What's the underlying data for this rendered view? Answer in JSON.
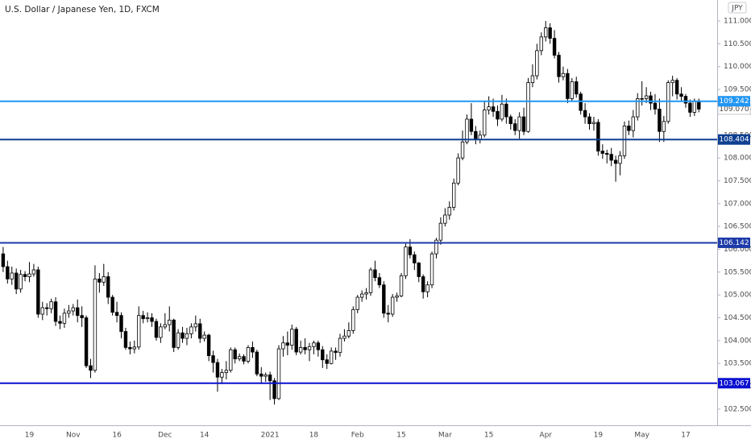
{
  "chart_data": {
    "type": "candlestick",
    "title": "U.S. Dollar / Japanese Yen, 1D, FXCM",
    "currency": "JPY",
    "categories": [
      null,
      null,
      null,
      null,
      null,
      null,
      "19",
      null,
      null,
      null,
      null,
      null,
      null,
      null,
      null,
      null,
      "Nov",
      null,
      null,
      null,
      null,
      null,
      null,
      null,
      null,
      null,
      "16",
      null,
      null,
      null,
      null,
      null,
      null,
      null,
      null,
      null,
      null,
      "Dec",
      null,
      null,
      null,
      null,
      null,
      null,
      null,
      null,
      "14",
      null,
      null,
      null,
      null,
      null,
      null,
      null,
      null,
      null,
      null,
      null,
      null,
      null,
      null,
      "2021",
      null,
      null,
      null,
      null,
      null,
      null,
      null,
      null,
      null,
      "18",
      null,
      null,
      null,
      null,
      null,
      null,
      null,
      null,
      null,
      "Feb",
      null,
      null,
      null,
      null,
      null,
      null,
      null,
      null,
      null,
      "15",
      null,
      null,
      null,
      null,
      null,
      null,
      null,
      null,
      null,
      "Mar",
      null,
      null,
      null,
      null,
      null,
      null,
      null,
      null,
      null,
      "15",
      null,
      null,
      null,
      null,
      null,
      null,
      null,
      null,
      null,
      null,
      null,
      null,
      "Apr",
      null,
      null,
      null,
      null,
      null,
      null,
      null,
      null,
      null,
      null,
      null,
      "19",
      null,
      null,
      null,
      null,
      null,
      null,
      null,
      null,
      null,
      "May",
      null,
      null,
      null,
      null,
      null,
      null,
      null,
      null,
      null,
      "17",
      null,
      null,
      null
    ],
    "open": [
      105.9,
      105.62,
      105.35,
      105.48,
      105.13,
      105.45,
      105.4,
      105.46,
      105.55,
      104.58,
      104.72,
      104.7,
      104.85,
      104.42,
      104.38,
      104.6,
      104.65,
      104.72,
      104.55,
      104.5,
      103.45,
      103.35,
      105.35,
      105.28,
      105.4,
      104.95,
      104.62,
      104.55,
      104.2,
      103.85,
      103.82,
      103.86,
      104.55,
      104.48,
      104.5,
      104.42,
      104.07,
      104.3,
      104.35,
      104.45,
      103.85,
      104.17,
      104.05,
      104.15,
      104.3,
      104.37,
      104.05,
      104.12,
      103.67,
      103.52,
      103.2,
      103.3,
      103.35,
      103.8,
      103.6,
      103.65,
      103.55,
      103.85,
      103.75,
      103.27,
      103.22,
      103.25,
      103.12,
      102.73,
      103.82,
      103.95,
      103.9,
      104.25,
      103.75,
      103.85,
      103.8,
      103.87,
      103.95,
      103.8,
      103.58,
      103.5,
      103.77,
      103.74,
      104.05,
      104.1,
      104.22,
      104.68,
      104.95,
      105.02,
      105.05,
      105.55,
      105.38,
      105.22,
      104.6,
      104.58,
      104.95,
      104.98,
      105.42,
      106.05,
      105.88,
      105.7,
      105.4,
      105.07,
      105.22,
      105.9,
      106.2,
      106.57,
      106.75,
      106.92,
      107.45,
      108.0,
      108.35,
      108.85,
      108.58,
      108.4,
      108.5,
      109.05,
      109.12,
      109.02,
      108.85,
      109.18,
      108.9,
      108.75,
      108.6,
      108.9,
      108.58,
      109.65,
      109.8,
      110.35,
      110.65,
      110.85,
      110.62,
      110.25,
      109.78,
      109.85,
      109.3,
      109.67,
      109.4,
      109.04,
      108.9,
      108.75,
      108.78,
      108.15,
      108.1,
      108.08,
      107.95,
      107.88,
      108.05,
      108.7,
      108.6,
      108.9,
      109.3,
      109.3,
      109.36,
      109.2,
      109.07,
      108.58,
      108.8,
      109.65,
      109.7,
      109.4,
      109.35,
      109.2,
      109.0,
      109.25
    ],
    "high": [
      106.05,
      105.75,
      105.62,
      105.58,
      105.55,
      105.52,
      105.72,
      105.68,
      105.62,
      104.85,
      104.82,
      104.92,
      104.95,
      104.55,
      104.7,
      104.78,
      104.8,
      104.9,
      104.75,
      104.55,
      103.6,
      105.65,
      105.48,
      105.68,
      105.5,
      105.0,
      104.85,
      104.62,
      104.28,
      103.98,
      104.0,
      104.75,
      104.65,
      104.62,
      104.6,
      104.48,
      104.38,
      104.6,
      104.75,
      104.48,
      104.25,
      104.3,
      104.28,
      104.38,
      104.55,
      104.48,
      104.2,
      104.15,
      103.78,
      103.6,
      103.38,
      103.55,
      103.85,
      103.85,
      103.72,
      103.7,
      103.9,
      103.98,
      103.8,
      103.42,
      103.3,
      103.32,
      103.18,
      103.9,
      104.1,
      104.2,
      104.35,
      104.3,
      104.0,
      104.05,
      103.95,
      104.0,
      104.0,
      103.88,
      103.7,
      103.85,
      103.85,
      104.15,
      104.25,
      104.4,
      104.75,
      105.0,
      105.1,
      105.15,
      105.6,
      105.75,
      105.48,
      105.3,
      104.78,
      105.02,
      105.05,
      105.48,
      106.12,
      106.22,
      105.95,
      105.72,
      105.45,
      105.3,
      105.95,
      106.25,
      106.7,
      106.9,
      107.05,
      107.55,
      108.1,
      108.6,
      108.95,
      109.2,
      108.7,
      108.6,
      109.25,
      109.35,
      109.3,
      109.15,
      109.38,
      109.3,
      108.95,
      108.85,
      109.0,
      109.1,
      109.75,
      110.05,
      110.5,
      110.75,
      111.0,
      110.95,
      110.8,
      110.32,
      110.0,
      109.95,
      109.75,
      109.78,
      109.45,
      109.2,
      108.98,
      108.9,
      108.85,
      108.3,
      108.18,
      108.22,
      108.05,
      108.15,
      108.8,
      108.82,
      109.05,
      109.42,
      109.68,
      109.55,
      109.45,
      109.4,
      109.3,
      108.92,
      109.7,
      109.8,
      109.75,
      109.55,
      109.4,
      109.28,
      109.3,
      109.3
    ],
    "low": [
      105.5,
      105.25,
      105.22,
      105.02,
      105.05,
      105.3,
      105.28,
      105.4,
      104.5,
      104.45,
      104.55,
      104.6,
      104.32,
      104.25,
      104.28,
      104.5,
      104.55,
      104.4,
      104.3,
      103.4,
      103.18,
      103.3,
      105.05,
      105.2,
      104.8,
      104.55,
      104.4,
      104.05,
      103.8,
      103.7,
      103.72,
      103.8,
      104.38,
      104.4,
      104.3,
      104.0,
      103.95,
      104.25,
      104.2,
      103.75,
      103.8,
      103.95,
      103.9,
      104.05,
      104.2,
      103.95,
      103.98,
      103.55,
      103.3,
      102.88,
      103.05,
      103.15,
      103.3,
      103.5,
      103.55,
      103.48,
      103.5,
      103.62,
      103.22,
      103.05,
      103.1,
      102.7,
      102.6,
      102.7,
      103.65,
      103.68,
      103.8,
      103.68,
      103.7,
      103.7,
      103.55,
      103.7,
      103.65,
      103.4,
      103.38,
      103.48,
      103.58,
      103.65,
      103.98,
      104.05,
      104.15,
      104.6,
      104.85,
      104.9,
      104.98,
      105.3,
      105.15,
      104.5,
      104.4,
      104.52,
      104.85,
      104.95,
      105.35,
      105.8,
      105.55,
      105.28,
      104.92,
      104.95,
      105.15,
      105.8,
      106.1,
      106.5,
      106.65,
      106.85,
      107.4,
      107.95,
      108.3,
      108.5,
      108.3,
      108.32,
      108.45,
      108.95,
      108.9,
      108.7,
      108.8,
      108.75,
      108.62,
      108.5,
      108.42,
      108.5,
      108.55,
      109.55,
      109.72,
      110.25,
      110.55,
      110.5,
      110.18,
      109.65,
      109.7,
      109.2,
      109.25,
      109.32,
      108.95,
      108.75,
      108.62,
      108.6,
      108.05,
      107.98,
      107.88,
      107.82,
      107.48,
      107.62,
      107.98,
      108.5,
      108.45,
      108.82,
      109.15,
      109.2,
      109.05,
      108.95,
      108.35,
      108.35,
      108.75,
      109.35,
      109.28,
      109.25,
      109.1,
      108.9,
      108.92,
      109.0
    ],
    "close": [
      105.62,
      105.35,
      105.48,
      105.13,
      105.45,
      105.4,
      105.46,
      105.55,
      104.58,
      104.72,
      104.7,
      104.85,
      104.42,
      104.38,
      104.6,
      104.65,
      104.72,
      104.55,
      104.5,
      103.45,
      103.35,
      105.35,
      105.28,
      105.4,
      104.95,
      104.62,
      104.55,
      104.2,
      103.85,
      103.82,
      103.86,
      104.55,
      104.48,
      104.5,
      104.42,
      104.07,
      104.3,
      104.35,
      104.45,
      103.85,
      104.17,
      104.05,
      104.15,
      104.3,
      104.37,
      104.05,
      104.12,
      103.67,
      103.52,
      103.2,
      103.3,
      103.35,
      103.8,
      103.6,
      103.65,
      103.55,
      103.85,
      103.75,
      103.27,
      103.22,
      103.25,
      103.12,
      102.73,
      103.82,
      103.95,
      103.9,
      104.25,
      103.75,
      103.85,
      103.8,
      103.87,
      103.95,
      103.8,
      103.58,
      103.5,
      103.77,
      103.74,
      104.05,
      104.1,
      104.22,
      104.68,
      104.95,
      105.02,
      105.05,
      105.55,
      105.38,
      105.22,
      104.6,
      104.58,
      104.95,
      104.98,
      105.42,
      106.05,
      105.88,
      105.7,
      105.4,
      105.07,
      105.22,
      105.9,
      106.2,
      106.57,
      106.75,
      106.92,
      107.45,
      108.0,
      108.35,
      108.85,
      108.58,
      108.4,
      108.5,
      109.05,
      109.12,
      109.02,
      108.85,
      109.18,
      108.9,
      108.75,
      108.6,
      108.9,
      108.58,
      109.65,
      109.8,
      110.35,
      110.65,
      110.85,
      110.62,
      110.25,
      109.78,
      109.85,
      109.3,
      109.67,
      109.4,
      109.04,
      108.9,
      108.75,
      108.78,
      108.15,
      108.1,
      108.08,
      107.95,
      107.88,
      108.05,
      108.7,
      108.6,
      108.9,
      109.3,
      109.3,
      109.36,
      109.2,
      109.07,
      108.58,
      108.8,
      109.65,
      109.7,
      109.4,
      109.35,
      109.2,
      109.0,
      109.25,
      109.07
    ],
    "up_color": "#ffffff",
    "down_color": "#000000",
    "wick_color": "#000000",
    "ylim": [
      102.146,
      111.459
    ],
    "yticks": [
      {
        "value": 102.5,
        "label": "102.500"
      },
      {
        "value": 103,
        "label": "103.000"
      },
      {
        "value": 103.5,
        "label": "103.500"
      },
      {
        "value": 104,
        "label": "104.000"
      },
      {
        "value": 104.5,
        "label": "104.500"
      },
      {
        "value": 105,
        "label": "105.000"
      },
      {
        "value": 105.5,
        "label": "105.500"
      },
      {
        "value": 106,
        "label": "106.000"
      },
      {
        "value": 106.5,
        "label": "106.500"
      },
      {
        "value": 107,
        "label": "107.000"
      },
      {
        "value": 107.5,
        "label": "107.500"
      },
      {
        "value": 108,
        "label": "108.000"
      },
      {
        "value": 108.5,
        "label": "108.500"
      },
      {
        "value": 109,
        "label": "109.000"
      },
      {
        "value": 109.5,
        "label": "109.500"
      },
      {
        "value": 110,
        "label": "110.000"
      },
      {
        "value": 110.5,
        "label": "110.500"
      },
      {
        "value": 111,
        "label": "111.000"
      }
    ],
    "levels": [
      {
        "value": 109.242,
        "color": "#2196f3"
      },
      {
        "value": 108.404,
        "color": "#0d3f91"
      },
      {
        "value": 106.142,
        "color": "#1c3aa8"
      },
      {
        "value": 103.067,
        "color": "#0a10d0"
      }
    ],
    "last_price": {
      "value": 109.07,
      "label": "109.070"
    },
    "grid": false
  }
}
